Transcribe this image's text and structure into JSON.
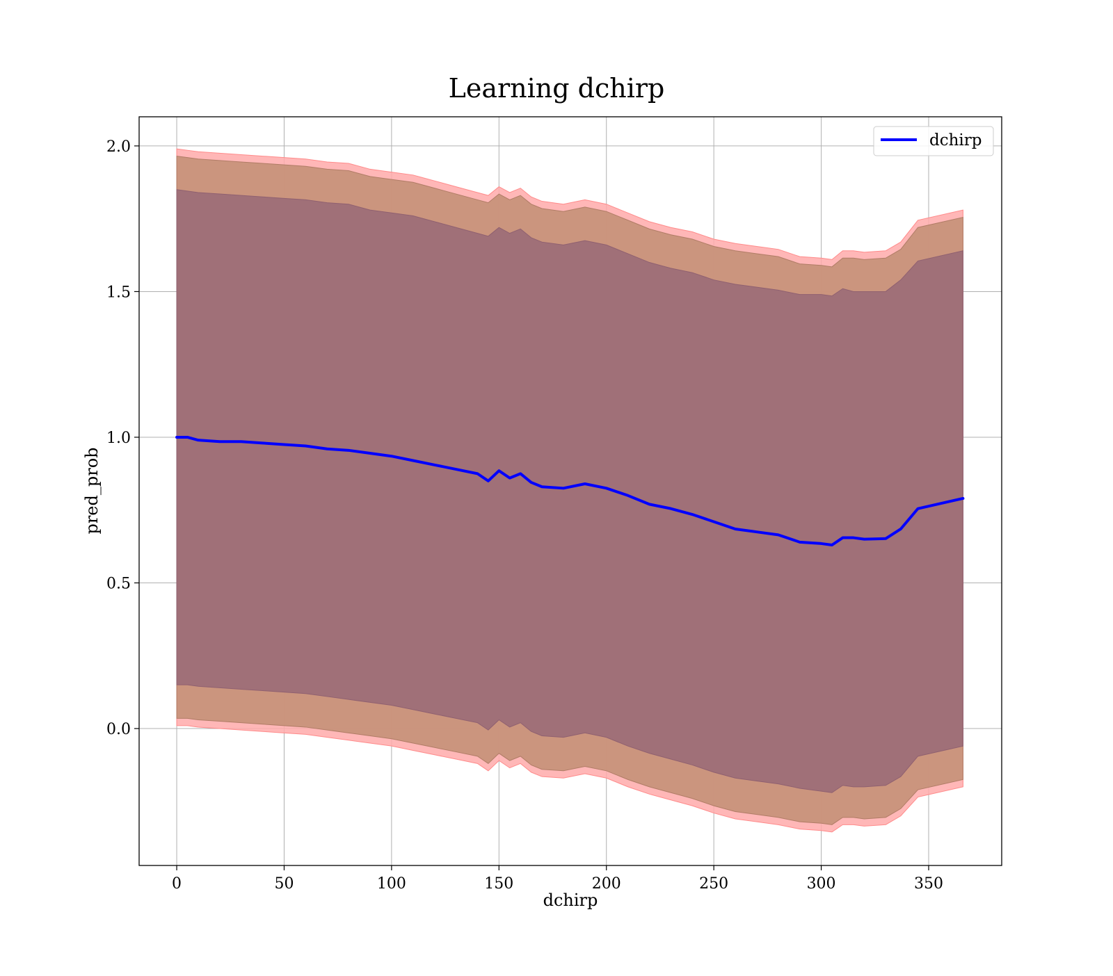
{
  "chart_data": {
    "type": "line",
    "title": "Learning dchirp",
    "xlabel": "dchirp",
    "ylabel": "pred_prob",
    "xlim": [
      -17.5,
      384
    ],
    "ylim": [
      -0.47,
      2.1
    ],
    "x_ticks": [
      0,
      50,
      100,
      150,
      200,
      250,
      300,
      350
    ],
    "y_ticks": [
      0.0,
      0.5,
      1.0,
      1.5,
      2.0
    ],
    "x_tick_labels": [
      "0",
      "50",
      "100",
      "150",
      "200",
      "250",
      "300",
      "350"
    ],
    "y_tick_labels": [
      "0.0",
      "0.5",
      "1.0",
      "1.5",
      "2.0"
    ],
    "grid": true,
    "legend": {
      "position": "top-right",
      "entries": [
        "dchirp"
      ]
    },
    "colors": {
      "line": "#0000ff",
      "band_outer": "#ffaaaa",
      "band_middle": "#c8927a",
      "band_inner": "#a07078",
      "grid": "#b0b0b0"
    },
    "x": [
      0,
      5,
      10,
      20,
      30,
      40,
      50,
      60,
      70,
      80,
      90,
      100,
      110,
      120,
      130,
      140,
      145,
      150,
      155,
      160,
      165,
      170,
      180,
      190,
      200,
      210,
      220,
      230,
      240,
      250,
      260,
      270,
      280,
      290,
      300,
      305,
      310,
      315,
      320,
      330,
      337,
      345,
      366
    ],
    "series": [
      {
        "name": "dchirp",
        "values": [
          1.0,
          1.0,
          0.99,
          0.985,
          0.985,
          0.98,
          0.975,
          0.97,
          0.96,
          0.955,
          0.945,
          0.935,
          0.92,
          0.905,
          0.89,
          0.875,
          0.85,
          0.885,
          0.86,
          0.875,
          0.845,
          0.83,
          0.825,
          0.84,
          0.825,
          0.8,
          0.77,
          0.755,
          0.735,
          0.71,
          0.685,
          0.675,
          0.665,
          0.64,
          0.635,
          0.63,
          0.655,
          0.655,
          0.65,
          0.652,
          0.685,
          0.755,
          0.79
        ]
      }
    ],
    "bands": [
      {
        "upper": [
          1.99,
          1.985,
          1.98,
          1.975,
          1.97,
          1.965,
          1.96,
          1.955,
          1.945,
          1.94,
          1.92,
          1.91,
          1.9,
          1.88,
          1.86,
          1.84,
          1.83,
          1.86,
          1.84,
          1.855,
          1.825,
          1.81,
          1.8,
          1.815,
          1.8,
          1.77,
          1.74,
          1.72,
          1.705,
          1.68,
          1.665,
          1.655,
          1.645,
          1.62,
          1.615,
          1.61,
          1.64,
          1.64,
          1.635,
          1.64,
          1.67,
          1.745,
          1.78
        ],
        "lower": [
          0.01,
          0.01,
          0.005,
          0.0,
          -0.005,
          -0.01,
          -0.015,
          -0.02,
          -0.03,
          -0.04,
          -0.05,
          -0.06,
          -0.075,
          -0.09,
          -0.105,
          -0.12,
          -0.145,
          -0.11,
          -0.135,
          -0.12,
          -0.15,
          -0.165,
          -0.17,
          -0.155,
          -0.17,
          -0.2,
          -0.225,
          -0.245,
          -0.265,
          -0.29,
          -0.31,
          -0.32,
          -0.33,
          -0.345,
          -0.35,
          -0.355,
          -0.33,
          -0.33,
          -0.335,
          -0.33,
          -0.3,
          -0.235,
          -0.2
        ]
      },
      {
        "upper": [
          1.965,
          1.96,
          1.955,
          1.95,
          1.945,
          1.94,
          1.935,
          1.93,
          1.92,
          1.915,
          1.895,
          1.885,
          1.875,
          1.855,
          1.835,
          1.815,
          1.805,
          1.835,
          1.815,
          1.83,
          1.8,
          1.785,
          1.775,
          1.79,
          1.775,
          1.745,
          1.715,
          1.695,
          1.68,
          1.655,
          1.64,
          1.63,
          1.62,
          1.595,
          1.59,
          1.585,
          1.615,
          1.615,
          1.61,
          1.615,
          1.645,
          1.72,
          1.755
        ],
        "lower": [
          0.035,
          0.035,
          0.03,
          0.025,
          0.02,
          0.015,
          0.01,
          0.005,
          -0.005,
          -0.015,
          -0.025,
          -0.035,
          -0.05,
          -0.065,
          -0.08,
          -0.095,
          -0.12,
          -0.085,
          -0.11,
          -0.095,
          -0.125,
          -0.14,
          -0.145,
          -0.13,
          -0.145,
          -0.175,
          -0.2,
          -0.22,
          -0.24,
          -0.265,
          -0.285,
          -0.295,
          -0.305,
          -0.32,
          -0.325,
          -0.33,
          -0.305,
          -0.305,
          -0.31,
          -0.305,
          -0.275,
          -0.21,
          -0.175
        ]
      },
      {
        "upper": [
          1.85,
          1.845,
          1.84,
          1.835,
          1.83,
          1.825,
          1.82,
          1.815,
          1.805,
          1.8,
          1.78,
          1.77,
          1.76,
          1.74,
          1.72,
          1.7,
          1.69,
          1.72,
          1.7,
          1.715,
          1.685,
          1.67,
          1.66,
          1.675,
          1.66,
          1.63,
          1.6,
          1.58,
          1.565,
          1.54,
          1.525,
          1.515,
          1.505,
          1.49,
          1.49,
          1.485,
          1.51,
          1.5,
          1.5,
          1.5,
          1.54,
          1.605,
          1.64
        ],
        "lower": [
          0.15,
          0.15,
          0.145,
          0.14,
          0.135,
          0.13,
          0.125,
          0.12,
          0.11,
          0.1,
          0.09,
          0.08,
          0.065,
          0.05,
          0.035,
          0.02,
          -0.005,
          0.03,
          0.005,
          0.02,
          -0.01,
          -0.025,
          -0.03,
          -0.015,
          -0.03,
          -0.06,
          -0.085,
          -0.105,
          -0.125,
          -0.15,
          -0.17,
          -0.18,
          -0.19,
          -0.205,
          -0.215,
          -0.22,
          -0.195,
          -0.2,
          -0.2,
          -0.195,
          -0.165,
          -0.095,
          -0.06
        ]
      }
    ]
  }
}
